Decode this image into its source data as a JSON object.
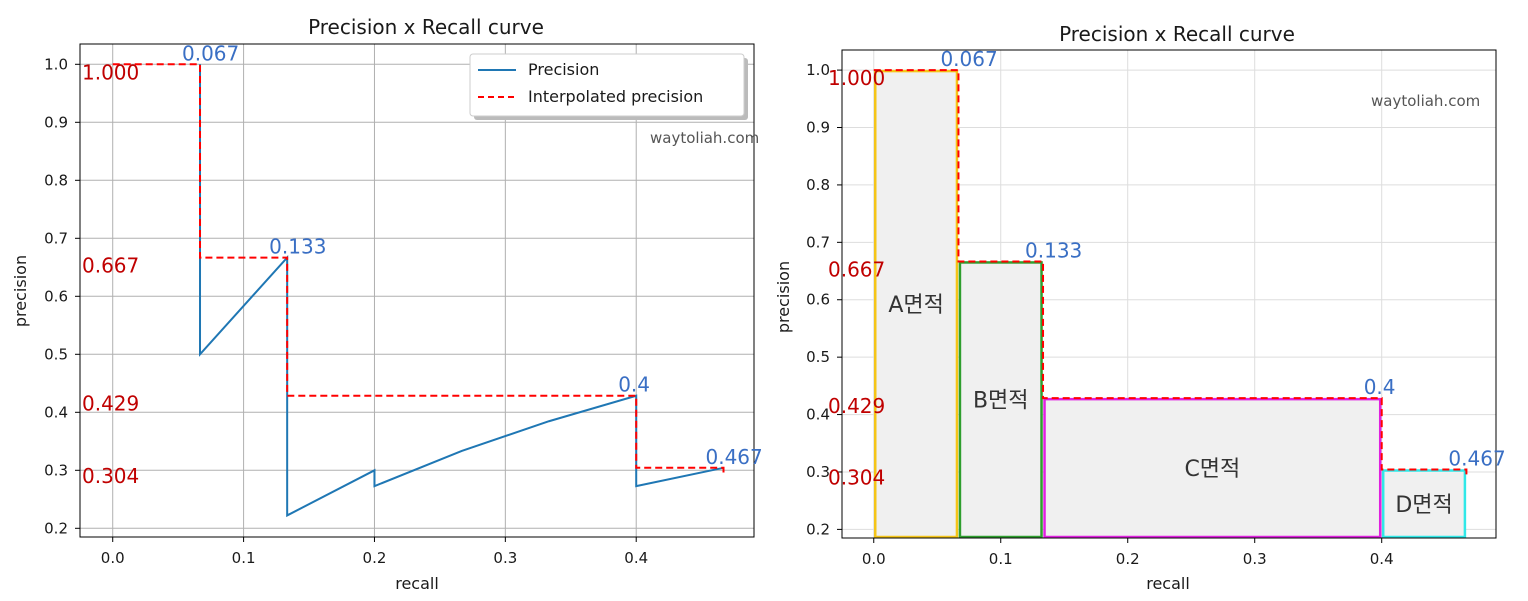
{
  "chart_data": [
    {
      "type": "line",
      "title": "Precision x Recall curve",
      "xlabel": "recall",
      "ylabel": "precision",
      "xlim": [
        -0.025,
        0.49
      ],
      "ylim": [
        0.185,
        1.035
      ],
      "xticks": [
        "0.0",
        "0.1",
        "0.2",
        "0.3",
        "0.4"
      ],
      "xtick_values": [
        0.0,
        0.1,
        0.2,
        0.3,
        0.4
      ],
      "yticks": [
        "0.2",
        "0.3",
        "0.4",
        "0.5",
        "0.6",
        "0.7",
        "0.8",
        "0.9",
        "1.0"
      ],
      "ytick_values": [
        0.2,
        0.3,
        0.4,
        0.5,
        0.6,
        0.7,
        0.8,
        0.9,
        1.0
      ],
      "grid": true,
      "legend_position": "top-right",
      "watermark": "waytoliah.com",
      "series": [
        {
          "name": "Precision",
          "color": "#1f77b4",
          "style": "solid",
          "x": [
            0.0667,
            0.0667,
            0.1333,
            0.1333,
            0.2,
            0.2,
            0.2667,
            0.3333,
            0.4,
            0.4,
            0.4667
          ],
          "y": [
            1.0,
            0.5,
            0.6667,
            0.2222,
            0.3,
            0.2727,
            0.3333,
            0.3846,
            0.4286,
            0.2727,
            0.3043
          ]
        },
        {
          "name": "Interpolated precision",
          "color": "#ff0000",
          "style": "dashed",
          "x": [
            0.0,
            0.0667,
            0.0667,
            0.1333,
            0.1333,
            0.4,
            0.4,
            0.4667,
            0.4667
          ],
          "y": [
            1.0,
            1.0,
            0.6667,
            0.6667,
            0.4286,
            0.4286,
            0.3043,
            0.3043,
            0.29
          ]
        }
      ],
      "annotations_blue": [
        {
          "text": "0.067",
          "x": 0.0667,
          "y": 1.0
        },
        {
          "text": "0.133",
          "x": 0.1333,
          "y": 0.6667
        },
        {
          "text": "0.4",
          "x": 0.4,
          "y": 0.4286
        },
        {
          "text": "0.467",
          "x": 0.4667,
          "y": 0.3043
        }
      ],
      "annotations_red": [
        {
          "text": "1.000",
          "y": 1.0
        },
        {
          "text": "0.667",
          "y": 0.6667
        },
        {
          "text": "0.429",
          "y": 0.4286
        },
        {
          "text": "0.304",
          "y": 0.3043
        }
      ]
    },
    {
      "type": "area",
      "title": "Precision x Recall curve",
      "xlabel": "recall",
      "ylabel": "precision",
      "xlim": [
        -0.025,
        0.49
      ],
      "ylim": [
        0.185,
        1.035
      ],
      "xticks": [
        "0.0",
        "0.1",
        "0.2",
        "0.3",
        "0.4"
      ],
      "xtick_values": [
        0.0,
        0.1,
        0.2,
        0.3,
        0.4
      ],
      "yticks": [
        "0.2",
        "0.3",
        "0.4",
        "0.5",
        "0.6",
        "0.7",
        "0.8",
        "0.9",
        "1.0"
      ],
      "ytick_values": [
        0.2,
        0.3,
        0.4,
        0.5,
        0.6,
        0.7,
        0.8,
        0.9,
        1.0
      ],
      "grid": true,
      "watermark": "waytoliah.com",
      "series": [
        {
          "name": "Interpolated precision",
          "color": "#ff0000",
          "style": "dashed",
          "x": [
            0.0,
            0.0667,
            0.0667,
            0.1333,
            0.1333,
            0.4,
            0.4,
            0.4667,
            0.4667
          ],
          "y": [
            1.0,
            1.0,
            0.6667,
            0.6667,
            0.4286,
            0.4286,
            0.3043,
            0.3043,
            0.29
          ]
        }
      ],
      "regions": [
        {
          "label": "A면적",
          "x0": 0.0,
          "x1": 0.0667,
          "top": 1.0,
          "color": "#f5c518"
        },
        {
          "label": "B면적",
          "x0": 0.0667,
          "x1": 0.1333,
          "top": 0.6667,
          "color": "#2e9e2e"
        },
        {
          "label": "C면적",
          "x0": 0.1333,
          "x1": 0.4,
          "top": 0.4286,
          "color": "#e020e0"
        },
        {
          "label": "D면적",
          "x0": 0.4,
          "x1": 0.4667,
          "top": 0.3043,
          "color": "#30e8e8"
        }
      ],
      "region_bottom": 0.185,
      "annotations_blue": [
        {
          "text": "0.067",
          "x": 0.0667,
          "y": 1.0
        },
        {
          "text": "0.133",
          "x": 0.1333,
          "y": 0.6667
        },
        {
          "text": "0.4",
          "x": 0.4,
          "y": 0.4286
        },
        {
          "text": "0.467",
          "x": 0.4667,
          "y": 0.3043
        }
      ],
      "annotations_red": [
        {
          "text": "1.000",
          "y": 1.0
        },
        {
          "text": "0.667",
          "y": 0.6667
        },
        {
          "text": "0.429",
          "y": 0.4286
        },
        {
          "text": "0.304",
          "y": 0.3043
        }
      ]
    }
  ]
}
